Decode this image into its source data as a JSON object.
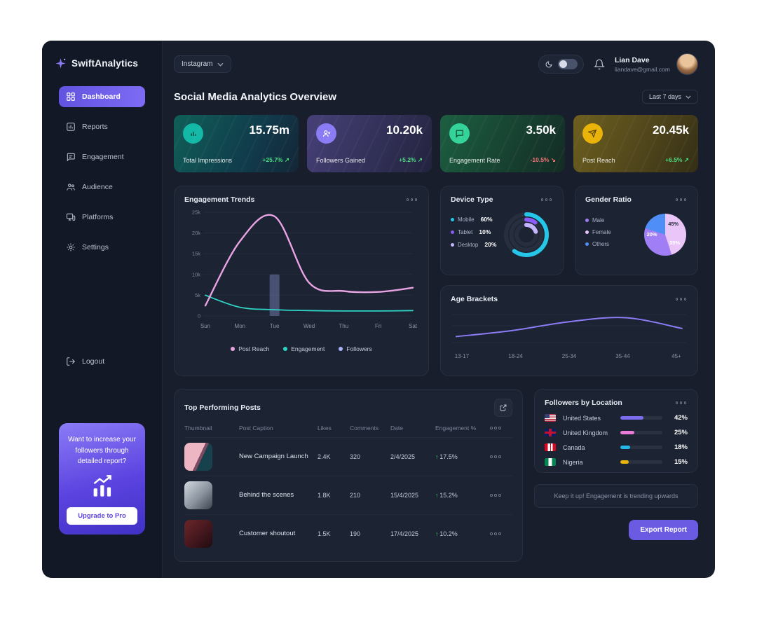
{
  "app": {
    "name": "SwiftAnalytics"
  },
  "sidebar": {
    "items": [
      {
        "label": "Dashboard"
      },
      {
        "label": "Reports"
      },
      {
        "label": "Engagement"
      },
      {
        "label": "Audience"
      },
      {
        "label": "Platforms"
      },
      {
        "label": "Settings"
      }
    ],
    "logout": "Logout",
    "promo": {
      "line1": "Want to increase your",
      "line2": "followers through",
      "line3": "detailed report?",
      "button": "Upgrade to Pro"
    }
  },
  "topbar": {
    "platform": "Instagram",
    "user_name": "Lian Dave",
    "user_email": "liandave@gmail.com"
  },
  "overview": {
    "title": "Social Media Analytics Overview",
    "range": "Last 7 days"
  },
  "stats": [
    {
      "value": "15.75m",
      "label": "Total Impressions",
      "delta": "+25.7%",
      "arrow": "↗",
      "trend": "up"
    },
    {
      "value": "10.20k",
      "label": "Followers Gained",
      "delta": "+5.2%",
      "arrow": "↗",
      "trend": "up"
    },
    {
      "value": "3.50k",
      "label": "Engagement Rate",
      "delta": "-10.5%",
      "arrow": "↘",
      "trend": "down"
    },
    {
      "value": "20.45k",
      "label": "Post Reach",
      "delta": "+6.5%",
      "arrow": "↗",
      "trend": "up"
    }
  ],
  "chart_data": [
    {
      "id": "engagement_trends",
      "type": "line",
      "title": "Engagement Trends",
      "categories": [
        "Sun",
        "Mon",
        "Tue",
        "Wed",
        "Thu",
        "Fri",
        "Sat"
      ],
      "ylim": [
        0,
        25000
      ],
      "yticks": [
        "0",
        "5k",
        "10k",
        "15k",
        "20k",
        "25k"
      ],
      "grid": true,
      "legend_position": "bottom",
      "series": [
        {
          "name": "Followers",
          "type": "bar",
          "color": "#a8b3fb",
          "values": [
            null,
            null,
            10000,
            null,
            null,
            null,
            null
          ]
        },
        {
          "name": "Engagement",
          "type": "line",
          "color": "#2fd4c6",
          "values": [
            5000,
            2100,
            1500,
            1300,
            1200,
            1200,
            1300
          ]
        },
        {
          "name": "Post Reach",
          "type": "line",
          "color": "#e8a3e3",
          "values": [
            2500,
            18000,
            24000,
            8000,
            6000,
            5800,
            6800
          ]
        }
      ],
      "legend": [
        "Post Reach",
        "Engagement",
        "Followers"
      ]
    },
    {
      "id": "device_type",
      "type": "donut",
      "title": "Device Type",
      "slices": [
        {
          "label": "Mobile",
          "value": 60,
          "pct": "60%",
          "color": "#26c6e8"
        },
        {
          "label": "Tablet",
          "value": 10,
          "pct": "10%",
          "color": "#8b5cf6"
        },
        {
          "label": "Desktop",
          "value": 20,
          "pct": "20%",
          "color": "#c4b5fd"
        }
      ]
    },
    {
      "id": "gender_ratio",
      "type": "pie",
      "title": "Gender Ratio",
      "slices": [
        {
          "label": "Male",
          "value": 35,
          "pct": "35%",
          "color": "#a07ef5"
        },
        {
          "label": "Female",
          "value": 45,
          "pct": "45%",
          "color": "#e9c6f7"
        },
        {
          "label": "Others",
          "value": 20,
          "pct": "20%",
          "color": "#4f8ef7"
        }
      ]
    },
    {
      "id": "age_brackets",
      "type": "line",
      "title": "Age Brackets",
      "categories": [
        "13-17",
        "18-24",
        "25-34",
        "35-44",
        "45+"
      ],
      "ylim": [
        0,
        100
      ],
      "series": [
        {
          "name": "Engagement",
          "color": "#8b7cf6",
          "values": [
            18,
            36,
            62,
            74,
            42
          ]
        }
      ]
    }
  ],
  "posts": {
    "title": "Top Performing Posts",
    "columns": [
      "Thumbnail",
      "Post Caption",
      "Likes",
      "Comments",
      "Date",
      "Engagement %"
    ],
    "rows": [
      {
        "caption": "New Campaign Launch",
        "likes": "2.4K",
        "comments": "320",
        "date": "2/4/2025",
        "arrow": "↑",
        "engagement": "17.5%"
      },
      {
        "caption": "Behind the scenes",
        "likes": "1.8K",
        "comments": "210",
        "date": "15/4/2025",
        "arrow": "↑",
        "engagement": "15.2%"
      },
      {
        "caption": "Customer shoutout",
        "likes": "1.5K",
        "comments": "190",
        "date": "17/4/2025",
        "arrow": "↑",
        "engagement": "10.2%"
      }
    ]
  },
  "locations": {
    "title": "Followers by Location",
    "rows": [
      {
        "country": "United States",
        "value": 42,
        "pct": "42%",
        "color": "#7c6cf0"
      },
      {
        "country": "United Kingdom",
        "value": 25,
        "pct": "25%",
        "color": "#e87bd8"
      },
      {
        "country": "Canada",
        "value": 18,
        "pct": "18%",
        "color": "#22b8e6"
      },
      {
        "country": "Nigeria",
        "value": 15,
        "pct": "15%",
        "color": "#eab308"
      }
    ]
  },
  "note": "Keep it up! Engagement is trending upwards",
  "export_button": "Export Report"
}
